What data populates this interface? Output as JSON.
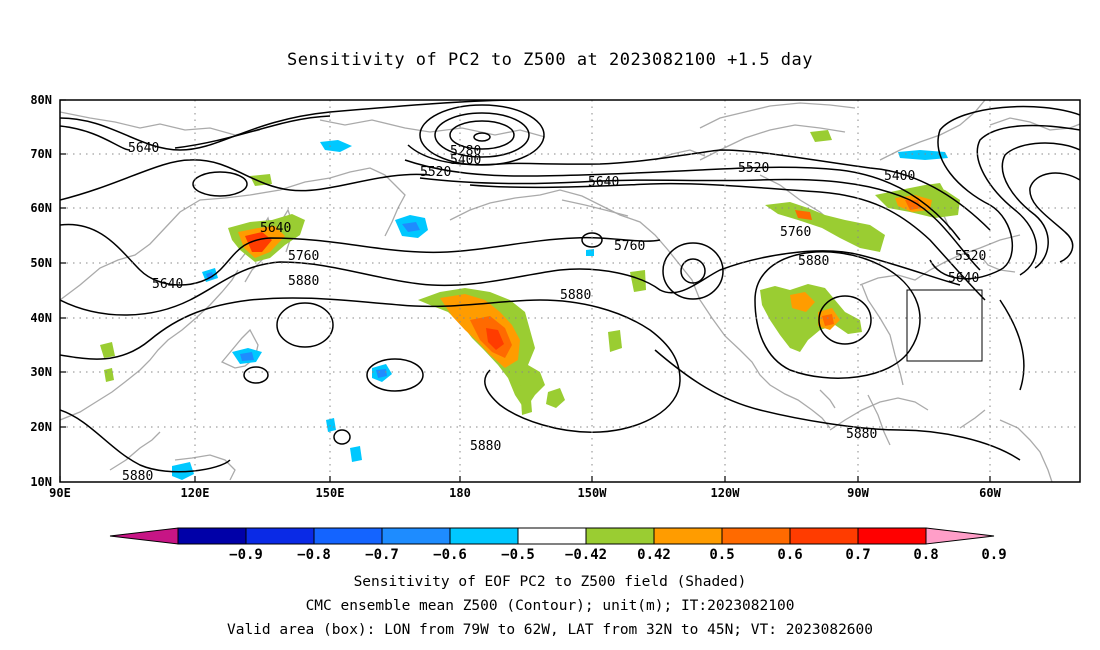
{
  "title": "Sensitivity of PC2 to Z500 at 2023082100 +1.5 day",
  "lat_labels": [
    "80N",
    "70N",
    "60N",
    "50N",
    "40N",
    "30N",
    "20N",
    "10N"
  ],
  "lon_labels": [
    "90E",
    "120E",
    "150E",
    "180",
    "150W",
    "120W",
    "90W",
    "60W"
  ],
  "contour_labels": [
    "5640",
    "5280",
    "5400",
    "5520",
    "5640",
    "5520",
    "5400",
    "5640",
    "5760",
    "5760",
    "5760",
    "5880",
    "5880",
    "5880",
    "5640",
    "5520",
    "5640",
    "5880",
    "5880",
    "5880"
  ],
  "colorbar": {
    "colors": [
      "#c71585",
      "#0000a8",
      "#0a2ae6",
      "#1464ff",
      "#1e8cff",
      "#00c8ff",
      "#ffffff",
      "#9acd32",
      "#ff9c00",
      "#ff6a00",
      "#ff3c00",
      "#ff0000",
      "#ff9ec8"
    ],
    "labels": [
      "-0.9",
      "-0.8",
      "-0.7",
      "-0.6",
      "-0.5",
      "-0.42",
      "0.42",
      "0.5",
      "0.6",
      "0.7",
      "0.8",
      "0.9"
    ]
  },
  "footer": {
    "line1": "Sensitivity of EOF PC2 to Z500 field (Shaded)",
    "line2": "CMC ensemble mean Z500 (Contour); unit(m); IT:2023082100",
    "line3": "Valid area (box): LON from 79W to 62W, LAT from 32N to 45N; VT: 2023082600"
  }
}
